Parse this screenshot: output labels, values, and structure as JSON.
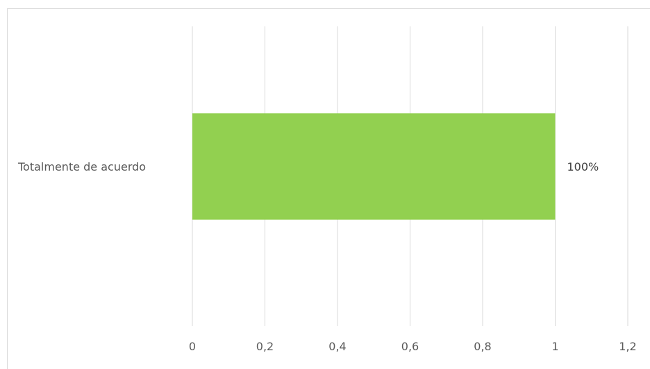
{
  "chart_data": {
    "type": "bar",
    "orientation": "horizontal",
    "categories": [
      "Totalmente de acuerdo"
    ],
    "values": [
      1
    ],
    "data_labels": [
      "100%"
    ],
    "xlim": [
      0,
      1.2
    ],
    "x_ticks": [
      0,
      0.2,
      0.4,
      0.6,
      0.8,
      1,
      1.2
    ],
    "x_tick_labels": [
      "0",
      "0,2",
      "0,4",
      "0,6",
      "0,8",
      "1",
      "1,2"
    ],
    "grid": true,
    "legend": "none",
    "colors": {
      "bar": "#92d050",
      "grid": "#d9d9d9"
    }
  }
}
